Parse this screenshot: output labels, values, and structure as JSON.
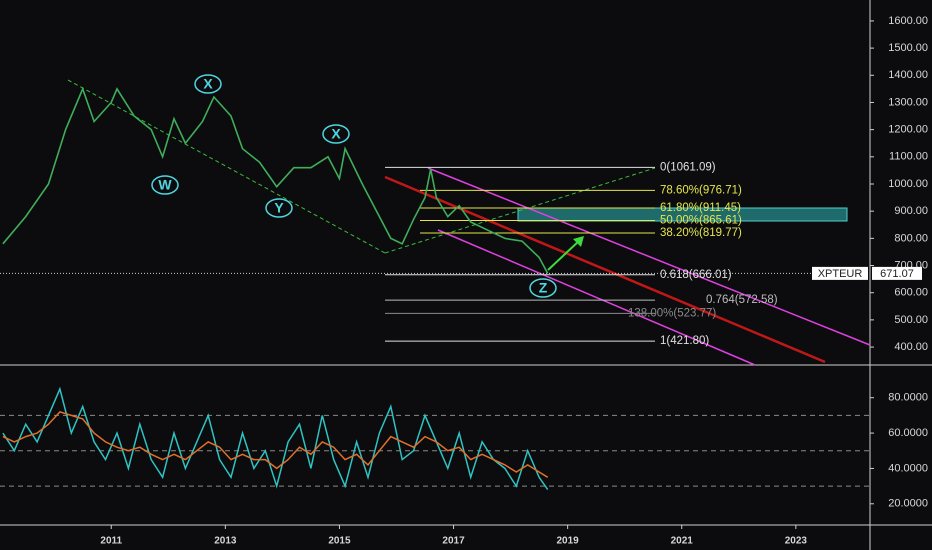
{
  "chart_data": [
    {
      "type": "line",
      "symbol": "XPTEUR",
      "last_price": 671.07,
      "x": [
        2009.1,
        2009.5,
        2009.9,
        2010.2,
        2010.5,
        2010.7,
        2011.0,
        2011.1,
        2011.4,
        2011.7,
        2011.9,
        2012.1,
        2012.3,
        2012.6,
        2012.8,
        2013.1,
        2013.3,
        2013.6,
        2013.9,
        2014.2,
        2014.5,
        2014.8,
        2015.0,
        2015.1,
        2015.4,
        2015.6,
        2015.9,
        2016.1,
        2016.3,
        2016.5,
        2016.6,
        2016.7,
        2016.9,
        2017.1,
        2017.3,
        2017.6,
        2017.9,
        2018.2,
        2018.5,
        2018.65
      ],
      "values": [
        780,
        880,
        1000,
        1200,
        1350,
        1230,
        1300,
        1350,
        1250,
        1200,
        1100,
        1240,
        1150,
        1230,
        1320,
        1250,
        1130,
        1080,
        990,
        1060,
        1060,
        1100,
        1020,
        1130,
        1000,
        920,
        800,
        780,
        870,
        950,
        1055,
        950,
        880,
        920,
        860,
        830,
        800,
        790,
        730,
        671
      ],
      "color": "#3fae5a",
      "xlim": [
        2009.05,
        2024.3
      ],
      "ylim": [
        334,
        1677
      ],
      "yticks": [
        {
          "value": 400,
          "label": "400.00"
        },
        {
          "value": 500,
          "label": "500.00"
        },
        {
          "value": 600,
          "label": "600.00"
        },
        {
          "value": 700,
          "label": "700.00"
        },
        {
          "value": 800,
          "label": "800.00"
        },
        {
          "value": 900,
          "label": "900.00"
        },
        {
          "value": 1000,
          "label": "1000.00"
        },
        {
          "value": 1100,
          "label": "1100.00"
        },
        {
          "value": 1200,
          "label": "1200.00"
        },
        {
          "value": 1300,
          "label": "1300.00"
        },
        {
          "value": 1400,
          "label": "1400.00"
        },
        {
          "value": 1500,
          "label": "1500.00"
        },
        {
          "value": 1600,
          "label": "1600.00"
        }
      ],
      "annotations": [
        "W",
        "X",
        "Y",
        "X",
        "Z"
      ],
      "fib_levels": [
        {
          "level": 1061.09,
          "label": "0(1061.09)",
          "color": "#e0e0e0"
        },
        {
          "level": 976.71,
          "label": "78.60%(976.71)",
          "color": "#e6e64a"
        },
        {
          "level": 911.45,
          "label": "61.80%(911.45)",
          "color": "#e6e64a"
        },
        {
          "level": 865.61,
          "label": "50.00%(865.61)",
          "color": "#e6e64a"
        },
        {
          "level": 819.77,
          "label": "38.20%(819.77)",
          "color": "#e6e64a"
        },
        {
          "level": 666.01,
          "label": "0.618(666.01)",
          "color": "#e0e0e0"
        },
        {
          "level": 572.58,
          "label": "0.764(572.58)",
          "color": "#bdbdbd"
        },
        {
          "level": 523.77,
          "label": "138.00%(523.77)",
          "color": "#8a8a8a"
        },
        {
          "level": 421.8,
          "label": "1(421.80)",
          "color": "#e0e0e0"
        }
      ]
    },
    {
      "type": "line",
      "x": [
        2009.1,
        2009.3,
        2009.5,
        2009.7,
        2009.9,
        2010.1,
        2010.3,
        2010.5,
        2010.7,
        2010.9,
        2011.1,
        2011.3,
        2011.5,
        2011.7,
        2011.9,
        2012.1,
        2012.3,
        2012.5,
        2012.7,
        2012.9,
        2013.1,
        2013.3,
        2013.5,
        2013.7,
        2013.9,
        2014.1,
        2014.3,
        2014.5,
        2014.7,
        2014.9,
        2015.1,
        2015.3,
        2015.5,
        2015.7,
        2015.9,
        2016.1,
        2016.3,
        2016.5,
        2016.7,
        2016.9,
        2017.1,
        2017.3,
        2017.5,
        2017.7,
        2017.9,
        2018.1,
        2018.3,
        2018.5,
        2018.65
      ],
      "series": [
        {
          "color": "#2ec4c4",
          "values": [
            60,
            50,
            65,
            55,
            70,
            85,
            60,
            75,
            55,
            45,
            60,
            40,
            65,
            45,
            35,
            60,
            40,
            55,
            70,
            45,
            35,
            60,
            40,
            50,
            30,
            55,
            65,
            40,
            70,
            45,
            30,
            55,
            35,
            60,
            75,
            45,
            50,
            70,
            55,
            40,
            60,
            35,
            55,
            45,
            40,
            30,
            50,
            35,
            28
          ]
        },
        {
          "color": "#e0702a",
          "values": [
            58,
            55,
            58,
            60,
            65,
            72,
            70,
            68,
            60,
            55,
            52,
            50,
            52,
            48,
            45,
            48,
            45,
            50,
            55,
            52,
            45,
            48,
            45,
            45,
            40,
            45,
            52,
            48,
            55,
            52,
            45,
            48,
            42,
            50,
            58,
            55,
            52,
            58,
            55,
            50,
            52,
            45,
            48,
            45,
            42,
            38,
            42,
            38,
            35
          ]
        }
      ],
      "xlim": [
        2009.05,
        2024.3
      ],
      "ylim": [
        8,
        98.5
      ],
      "yticks": [
        {
          "value": 20,
          "label": "20.0000"
        },
        {
          "value": 40,
          "label": "40.0000"
        },
        {
          "value": 60,
          "label": "60.0000"
        },
        {
          "value": 80,
          "label": "80.0000"
        }
      ],
      "hlines": [
        70,
        50,
        30
      ],
      "xticks": [
        2011,
        2013,
        2015,
        2017,
        2019,
        2021,
        2023
      ]
    }
  ]
}
